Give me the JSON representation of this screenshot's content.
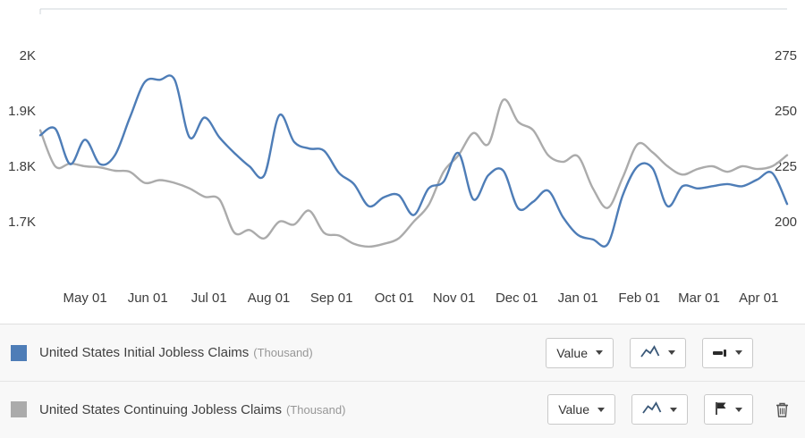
{
  "chart_data": {
    "type": "line",
    "title": "",
    "x_unit": "weekly observations",
    "grid": false,
    "legend_position": "bottom-panel",
    "x_tick_labels": [
      {
        "label": "May 01",
        "week": 3.0
      },
      {
        "label": "Jun 01",
        "week": 7.2
      },
      {
        "label": "Jul 01",
        "week": 11.3
      },
      {
        "label": "Aug 01",
        "week": 15.3
      },
      {
        "label": "Sep 01",
        "week": 19.5
      },
      {
        "label": "Oct 01",
        "week": 23.7
      },
      {
        "label": "Nov 01",
        "week": 27.7
      },
      {
        "label": "Dec 01",
        "week": 31.9
      },
      {
        "label": "Jan 01",
        "week": 36.0
      },
      {
        "label": "Feb 01",
        "week": 40.1
      },
      {
        "label": "Mar 01",
        "week": 44.1
      },
      {
        "label": "Apr 01",
        "week": 48.1
      }
    ],
    "axes": {
      "left": {
        "min": 1600,
        "max": 2084,
        "ticks": [
          {
            "label": "2K",
            "value": 2000
          },
          {
            "label": "1.9K",
            "value": 1900
          },
          {
            "label": "1.8K",
            "value": 1800
          },
          {
            "label": "1.7K",
            "value": 1700
          }
        ]
      },
      "right": {
        "min": 175,
        "max": 296,
        "ticks": [
          {
            "label": "275",
            "value": 275
          },
          {
            "label": "250",
            "value": 250
          },
          {
            "label": "225",
            "value": 225
          },
          {
            "label": "200",
            "value": 200
          }
        ]
      }
    },
    "series": [
      {
        "name": "United States Initial Jobless Claims",
        "unit": "Thousand",
        "axis": "right",
        "color": "#4e7db7",
        "values": [
          239,
          242,
          226,
          237,
          226,
          230,
          247,
          263,
          264,
          264,
          238,
          247,
          238,
          231,
          225,
          221,
          248,
          236,
          233,
          232,
          222,
          217,
          207,
          211,
          212,
          203,
          215,
          218,
          231,
          210,
          221,
          223,
          206,
          209,
          214,
          202,
          194,
          192,
          190,
          212,
          225,
          224,
          207,
          216,
          215,
          216,
          217,
          216,
          219,
          222,
          208
        ]
      },
      {
        "name": "United States Continuing Jobless Claims",
        "unit": "Thousand",
        "axis": "left",
        "color": "#ababab",
        "values": [
          1865,
          1800,
          1805,
          1800,
          1798,
          1792,
          1790,
          1770,
          1775,
          1770,
          1760,
          1745,
          1740,
          1680,
          1685,
          1670,
          1700,
          1695,
          1720,
          1680,
          1675,
          1660,
          1655,
          1660,
          1670,
          1700,
          1730,
          1790,
          1820,
          1860,
          1840,
          1920,
          1880,
          1865,
          1820,
          1808,
          1818,
          1760,
          1725,
          1780,
          1840,
          1825,
          1800,
          1785,
          1795,
          1800,
          1790,
          1800,
          1795,
          1800,
          1820
        ]
      }
    ]
  },
  "legend": {
    "rows": [
      {
        "label": "United States Initial Jobless Claims",
        "unit_label": "(Thousand)",
        "swatch_color": "#4e7db7",
        "value_dropdown_label": "Value"
      },
      {
        "label": "United States Continuing Jobless Claims",
        "unit_label": "(Thousand)",
        "swatch_color": "#ababab",
        "value_dropdown_label": "Value"
      }
    ]
  }
}
